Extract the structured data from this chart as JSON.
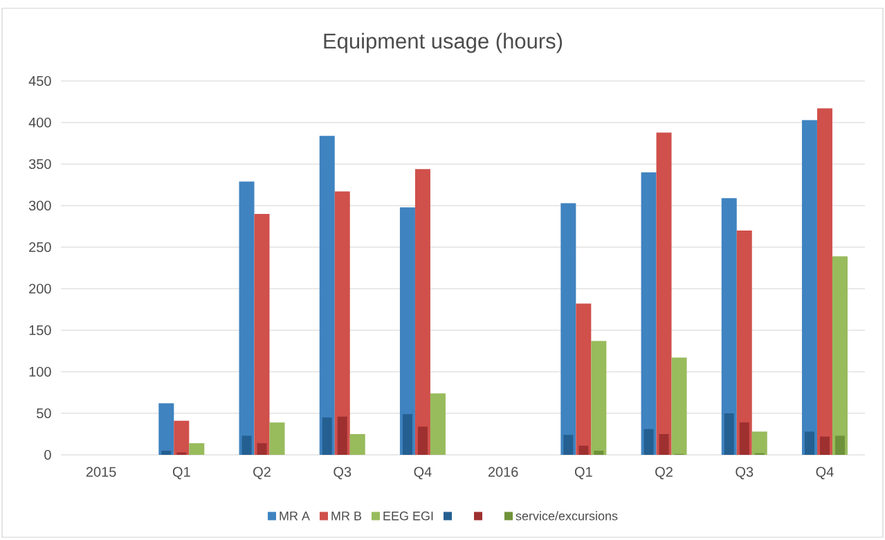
{
  "chart_data": {
    "type": "bar",
    "title": "Equipment usage (hours)",
    "categories": [
      "2015",
      "Q1",
      "Q2",
      "Q3",
      "Q4",
      "2016",
      "Q1",
      "Q2",
      "Q3",
      "Q4"
    ],
    "series": [
      {
        "name": "MR A",
        "color": "#3f83c0",
        "values": [
          null,
          62,
          329,
          384,
          298,
          null,
          303,
          340,
          309,
          403
        ]
      },
      {
        "name": "MR B",
        "color": "#d0504b",
        "values": [
          null,
          41,
          290,
          317,
          344,
          null,
          182,
          388,
          270,
          417
        ]
      },
      {
        "name": "EEG EGI",
        "color": "#98bb5c",
        "values": [
          null,
          14,
          39,
          25,
          74,
          null,
          137,
          117,
          28,
          239
        ]
      },
      {
        "color": "#245f91",
        "values": [
          null,
          5,
          23,
          45,
          49,
          null,
          24,
          31,
          50,
          28
        ]
      },
      {
        "color": "#9e3030",
        "values": [
          null,
          3,
          14,
          46,
          34,
          null,
          11,
          25,
          39,
          22
        ]
      },
      {
        "name": "service/excursions",
        "color": "#6e9239",
        "values": [
          null,
          0,
          0,
          0,
          0,
          null,
          5,
          1,
          2,
          23
        ]
      }
    ],
    "ylim": [
      0,
      450
    ],
    "yticks": [
      0,
      50,
      100,
      150,
      200,
      250,
      300,
      350,
      400,
      450
    ],
    "grid": "y",
    "legend": "bottom"
  }
}
